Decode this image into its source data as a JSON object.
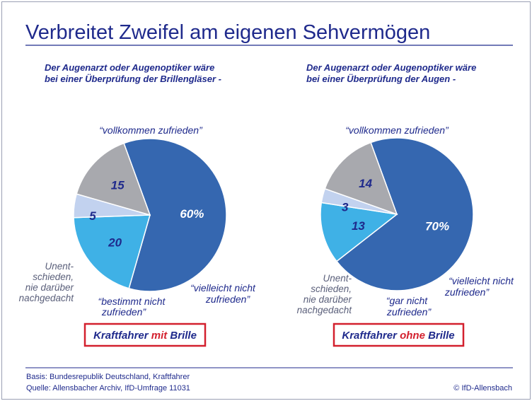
{
  "title": "Verbreitet Zweifel am eigenen Sehvermögen",
  "colors": {
    "title": "#1f2a8c",
    "rule": "#1f2a8c",
    "highlight": "#d3202e",
    "slice_main": "#3567b0",
    "slice_light": "#3fb1e6",
    "slice_pale": "#c2d2ef",
    "slice_grey": "#a8a9ae"
  },
  "chart_data": [
    {
      "type": "pie",
      "subtitle_line1": "Der Augenarzt oder Augenoptiker wäre",
      "subtitle_line2": "bei einer Überprüfung der Brillengläser -",
      "badge": {
        "pre": "Kraftfahrer ",
        "highlight": "mit",
        "post": " Brille"
      },
      "slices": [
        {
          "label_lines": [
            "“vollkommen zufrieden”"
          ],
          "value": 60,
          "value_label": "60%",
          "color": "#3567b0"
        },
        {
          "label_lines": [
            "“vielleicht nicht",
            "zufrieden”"
          ],
          "value": 20,
          "value_label": "20",
          "color": "#3fb1e6"
        },
        {
          "label_lines": [
            "“bestimmt nicht",
            "zufrieden”"
          ],
          "value": 5,
          "value_label": "5",
          "color": "#c2d2ef"
        },
        {
          "label_lines": [
            "Unent-",
            "schieden,",
            "nie darüber",
            "nachgedacht"
          ],
          "value": 15,
          "value_label": "15",
          "color": "#a8a9ae"
        }
      ]
    },
    {
      "type": "pie",
      "subtitle_line1": "Der Augenarzt oder Augenoptiker wäre",
      "subtitle_line2": "bei einer Überprüfung der Augen -",
      "badge": {
        "pre": "Kraftfahrer ",
        "highlight": "ohne",
        "post": " Brille"
      },
      "slices": [
        {
          "label_lines": [
            "“vollkommen zufrieden”"
          ],
          "value": 70,
          "value_label": "70%",
          "color": "#3567b0"
        },
        {
          "label_lines": [
            "“vielleicht nicht",
            "zufrieden”"
          ],
          "value": 13,
          "value_label": "13",
          "color": "#3fb1e6"
        },
        {
          "label_lines": [
            "“gar nicht",
            "zufrieden”"
          ],
          "value": 3,
          "value_label": "3",
          "color": "#c2d2ef"
        },
        {
          "label_lines": [
            "Unent-",
            "schieden,",
            "nie darüber",
            "nachgedacht"
          ],
          "value": 14,
          "value_label": "14",
          "color": "#a8a9ae"
        }
      ]
    }
  ],
  "footer": {
    "basis": "Basis: Bundesrepublik Deutschland, Kraftfahrer",
    "quelle": "Quelle: Allensbacher Archiv, IfD-Umfrage 11031",
    "copyright": "© IfD-Allensbach"
  }
}
